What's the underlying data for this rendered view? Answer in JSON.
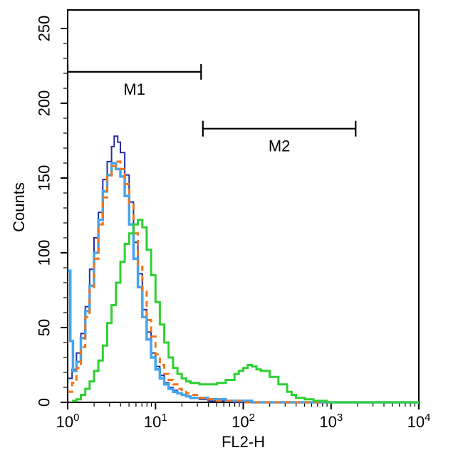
{
  "chart_data": {
    "type": "line",
    "subtype": "flow-cytometry-overlay-histogram",
    "title": "",
    "xlabel": "FL2-H",
    "ylabel": "Counts",
    "x_scale": "log10",
    "xlim": [
      1,
      10000
    ],
    "ylim": [
      0,
      250
    ],
    "grid": false,
    "legend": "none",
    "background_color": "#ffffff",
    "axis_color": "#000000",
    "x_ticks": [
      {
        "base": "10",
        "exp": "0",
        "value": 1
      },
      {
        "base": "10",
        "exp": "1",
        "value": 10
      },
      {
        "base": "10",
        "exp": "2",
        "value": 100
      },
      {
        "base": "10",
        "exp": "3",
        "value": 1000
      },
      {
        "base": "10",
        "exp": "4",
        "value": 10000
      }
    ],
    "y_ticks": [
      {
        "label": "0",
        "value": 0
      },
      {
        "label": "50",
        "value": 50
      },
      {
        "label": "100",
        "value": 100
      },
      {
        "label": "150",
        "value": 150
      },
      {
        "label": "200",
        "value": 200
      },
      {
        "label": "250",
        "value": 250
      }
    ],
    "markers": [
      {
        "label": "M1",
        "x_log": [
          0.0,
          1.52
        ],
        "counts": 221
      },
      {
        "label": "M2",
        "x_log": [
          1.54,
          3.28
        ],
        "counts": 183
      }
    ],
    "series": [
      {
        "name": "dark-blue",
        "color": "#232fa0",
        "width": 2,
        "dash": null,
        "points_logx_counts": [
          [
            0.0,
            16
          ],
          [
            0.05,
            22
          ],
          [
            0.1,
            33
          ],
          [
            0.15,
            46
          ],
          [
            0.2,
            64
          ],
          [
            0.25,
            89
          ],
          [
            0.3,
            110
          ],
          [
            0.35,
            127
          ],
          [
            0.4,
            149
          ],
          [
            0.45,
            161
          ],
          [
            0.5,
            171
          ],
          [
            0.53,
            178
          ],
          [
            0.57,
            174
          ],
          [
            0.6,
            167
          ],
          [
            0.65,
            152
          ],
          [
            0.7,
            134
          ],
          [
            0.75,
            107
          ],
          [
            0.8,
            86
          ],
          [
            0.85,
            62
          ],
          [
            0.9,
            47
          ],
          [
            0.95,
            33
          ],
          [
            1.0,
            24
          ],
          [
            1.05,
            18
          ],
          [
            1.1,
            13
          ],
          [
            1.15,
            10
          ],
          [
            1.2,
            8
          ],
          [
            1.25,
            6
          ],
          [
            1.3,
            5
          ],
          [
            1.35,
            4
          ],
          [
            1.4,
            3
          ],
          [
            1.5,
            2
          ],
          [
            1.6,
            1
          ],
          [
            1.75,
            1
          ],
          [
            1.9,
            0
          ],
          [
            2.5,
            0
          ],
          [
            3.25,
            0
          ],
          [
            4.0,
            0
          ]
        ]
      },
      {
        "name": "light-blue",
        "color": "#45a5ef",
        "width": 3.5,
        "dash": null,
        "points_logx_counts": [
          [
            0.0,
            88
          ],
          [
            0.03,
            41
          ],
          [
            0.06,
            21
          ],
          [
            0.1,
            27
          ],
          [
            0.15,
            43
          ],
          [
            0.2,
            61
          ],
          [
            0.25,
            78
          ],
          [
            0.3,
            100
          ],
          [
            0.35,
            122
          ],
          [
            0.4,
            141
          ],
          [
            0.45,
            152
          ],
          [
            0.5,
            160
          ],
          [
            0.55,
            156
          ],
          [
            0.6,
            151
          ],
          [
            0.65,
            138
          ],
          [
            0.7,
            119
          ],
          [
            0.75,
            96
          ],
          [
            0.8,
            77
          ],
          [
            0.85,
            57
          ],
          [
            0.9,
            42
          ],
          [
            0.95,
            30
          ],
          [
            1.0,
            22
          ],
          [
            1.05,
            16
          ],
          [
            1.1,
            12
          ],
          [
            1.15,
            9
          ],
          [
            1.2,
            7
          ],
          [
            1.25,
            6
          ],
          [
            1.3,
            5
          ],
          [
            1.35,
            4
          ],
          [
            1.4,
            3
          ],
          [
            1.5,
            3
          ],
          [
            1.6,
            2
          ],
          [
            1.7,
            2
          ],
          [
            1.8,
            1
          ],
          [
            1.95,
            1
          ],
          [
            2.1,
            0
          ],
          [
            3.0,
            0
          ],
          [
            4.0,
            0
          ]
        ]
      },
      {
        "name": "orange",
        "color": "#f0751d",
        "width": 3,
        "dash": "8 6",
        "points_logx_counts": [
          [
            0.0,
            7
          ],
          [
            0.05,
            13
          ],
          [
            0.1,
            23
          ],
          [
            0.15,
            37
          ],
          [
            0.2,
            57
          ],
          [
            0.25,
            77
          ],
          [
            0.3,
            96
          ],
          [
            0.35,
            119
          ],
          [
            0.4,
            137
          ],
          [
            0.45,
            151
          ],
          [
            0.5,
            158
          ],
          [
            0.55,
            161
          ],
          [
            0.6,
            156
          ],
          [
            0.65,
            146
          ],
          [
            0.7,
            132
          ],
          [
            0.75,
            113
          ],
          [
            0.8,
            92
          ],
          [
            0.85,
            74
          ],
          [
            0.9,
            55
          ],
          [
            0.95,
            44
          ],
          [
            1.0,
            32
          ],
          [
            1.05,
            25
          ],
          [
            1.1,
            19
          ],
          [
            1.15,
            15
          ],
          [
            1.2,
            12
          ],
          [
            1.25,
            9
          ],
          [
            1.3,
            7
          ],
          [
            1.35,
            6
          ],
          [
            1.4,
            5
          ],
          [
            1.5,
            3
          ],
          [
            1.6,
            2
          ],
          [
            1.7,
            1
          ],
          [
            1.85,
            1
          ],
          [
            2.0,
            0
          ],
          [
            3.0,
            0
          ],
          [
            4.0,
            0
          ]
        ]
      },
      {
        "name": "green",
        "color": "#2ed133",
        "width": 3,
        "dash": null,
        "points_logx_counts": [
          [
            0.05,
            1
          ],
          [
            0.1,
            2
          ],
          [
            0.15,
            5
          ],
          [
            0.2,
            9
          ],
          [
            0.25,
            14
          ],
          [
            0.3,
            21
          ],
          [
            0.35,
            28
          ],
          [
            0.4,
            38
          ],
          [
            0.45,
            53
          ],
          [
            0.5,
            65
          ],
          [
            0.55,
            80
          ],
          [
            0.6,
            94
          ],
          [
            0.65,
            106
          ],
          [
            0.7,
            113
          ],
          [
            0.75,
            119
          ],
          [
            0.8,
            122
          ],
          [
            0.85,
            117
          ],
          [
            0.9,
            102
          ],
          [
            0.95,
            85
          ],
          [
            1.0,
            67
          ],
          [
            1.05,
            52
          ],
          [
            1.1,
            40
          ],
          [
            1.15,
            30
          ],
          [
            1.2,
            23
          ],
          [
            1.25,
            19
          ],
          [
            1.3,
            16
          ],
          [
            1.35,
            14
          ],
          [
            1.4,
            13
          ],
          [
            1.5,
            12
          ],
          [
            1.6,
            12
          ],
          [
            1.7,
            13
          ],
          [
            1.8,
            15
          ],
          [
            1.9,
            19
          ],
          [
            1.95,
            21
          ],
          [
            2.0,
            23
          ],
          [
            2.05,
            25
          ],
          [
            2.1,
            24
          ],
          [
            2.15,
            22
          ],
          [
            2.2,
            21
          ],
          [
            2.3,
            17
          ],
          [
            2.4,
            12
          ],
          [
            2.5,
            7
          ],
          [
            2.55,
            5
          ],
          [
            2.6,
            3
          ],
          [
            2.7,
            2
          ],
          [
            2.8,
            1
          ],
          [
            2.95,
            0
          ],
          [
            3.5,
            0
          ],
          [
            4.0,
            0
          ]
        ]
      }
    ]
  }
}
